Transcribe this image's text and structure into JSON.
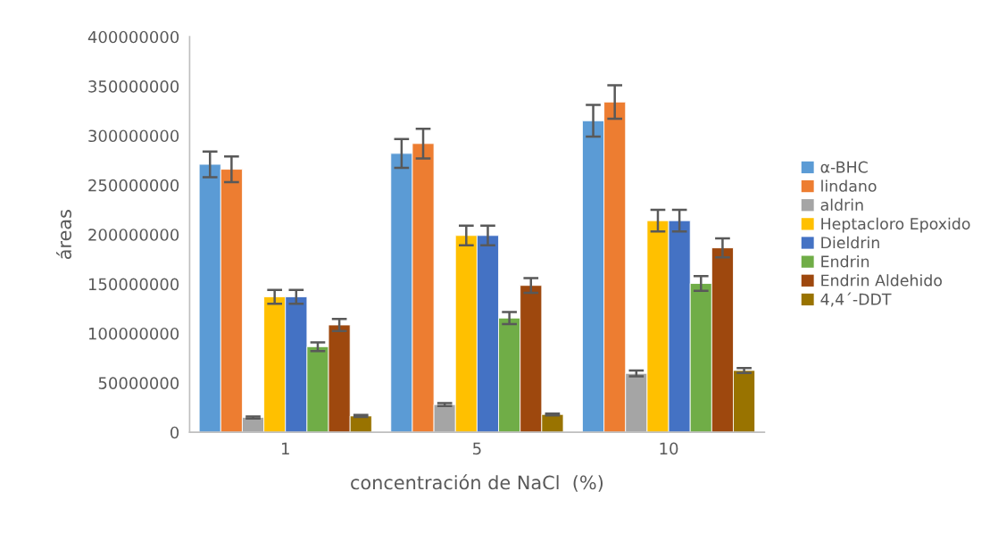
{
  "chart_data": {
    "type": "bar",
    "xlabel": "concentración de NaCl  (%)",
    "ylabel": "áreas",
    "categories": [
      "1",
      "5",
      "10"
    ],
    "series": [
      {
        "name": "α-BHC",
        "color": "#5b9bd5",
        "values": [
          271000000,
          282000000,
          315000000
        ],
        "errors": [
          13000000,
          14500000,
          16000000
        ]
      },
      {
        "name": "lindano",
        "color": "#ed7d31",
        "values": [
          266000000,
          292000000,
          334000000
        ],
        "errors": [
          13000000,
          15000000,
          17000000
        ]
      },
      {
        "name": "aldrin",
        "color": "#a5a5a5",
        "values": [
          15000000,
          28000000,
          59500000
        ],
        "errors": [
          1000000,
          1500000,
          3000000
        ]
      },
      {
        "name": "Heptacloro Epoxido",
        "color": "#ffc000",
        "values": [
          137000000,
          199000000,
          214000000
        ],
        "errors": [
          7000000,
          10000000,
          11000000
        ]
      },
      {
        "name": "Dieldrin",
        "color": "#4472c4",
        "values": [
          137000000,
          199000000,
          214000000
        ],
        "errors": [
          7000000,
          10000000,
          11000000
        ]
      },
      {
        "name": "Endrin",
        "color": "#70ad47",
        "values": [
          86500000,
          115500000,
          150500000
        ],
        "errors": [
          4500000,
          6000000,
          7500000
        ]
      },
      {
        "name": "Endrin Aldehido",
        "color": "#9e480e",
        "values": [
          108500000,
          148500000,
          186500000
        ],
        "errors": [
          6000000,
          7500000,
          9500000
        ]
      },
      {
        "name": "4,4´-DDT",
        "color": "#997300",
        "values": [
          16500000,
          18000000,
          62500000
        ],
        "errors": [
          1000000,
          1000000,
          2500000
        ]
      }
    ],
    "ylim": [
      0,
      400000000
    ],
    "yticks": [
      0,
      50000000,
      100000000,
      150000000,
      200000000,
      250000000,
      300000000,
      350000000,
      400000000
    ],
    "grid": false,
    "legend": "right"
  }
}
